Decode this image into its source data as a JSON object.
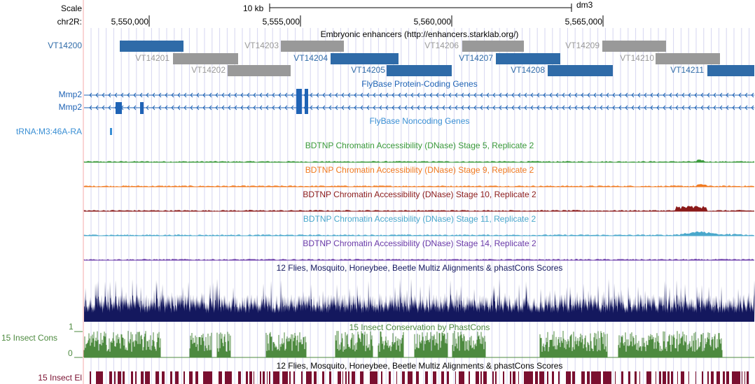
{
  "ruler": {
    "scale_label": "Scale",
    "scale_value": "10 kb",
    "assembly": "dm3",
    "chrom_label": "chr2R:",
    "positions": [
      "5,550,000",
      "5,555,000",
      "5,560,000",
      "5,565,000"
    ]
  },
  "enhancers": {
    "title": "Embryonic enhancers (http://enhancers.starklab.org/)",
    "items": [
      {
        "name": "VT14200",
        "color": "#2f6ba8"
      },
      {
        "name": "VT14201",
        "color": "#999999"
      },
      {
        "name": "VT14202",
        "color": "#999999"
      },
      {
        "name": "VT14203",
        "color": "#999999"
      },
      {
        "name": "VT14204",
        "color": "#2f6ba8"
      },
      {
        "name": "VT14205",
        "color": "#2f6ba8"
      },
      {
        "name": "VT14206",
        "color": "#999999"
      },
      {
        "name": "VT14207",
        "color": "#2f6ba8"
      },
      {
        "name": "VT14208",
        "color": "#2f6ba8"
      },
      {
        "name": "VT14209",
        "color": "#999999"
      },
      {
        "name": "VT14210",
        "color": "#999999"
      },
      {
        "name": "VT14211",
        "color": "#2f6ba8"
      }
    ]
  },
  "coding_genes": {
    "title": "FlyBase Protein-Coding Genes",
    "genes": [
      "Mmp2",
      "Mmp2"
    ],
    "color": "#1f63b5"
  },
  "noncoding_genes": {
    "title": "FlyBase Noncoding Genes",
    "genes": [
      "tRNA:M3:46A-RA"
    ],
    "color": "#3a8fd4"
  },
  "dnase_tracks": [
    {
      "title": "BDTNP Chromatin Accessibility (DNase) Stage 5, Replicate 2",
      "color": "#3a9a3a"
    },
    {
      "title": "BDTNP Chromatin Accessibility (DNase) Stage 9, Replicate 2",
      "color": "#f07a20"
    },
    {
      "title": "BDTNP Chromatin Accessibility (DNase) Stage 10, Replicate 2",
      "color": "#8b1a1a"
    },
    {
      "title": "BDTNP Chromatin Accessibility (DNase) Stage 11, Replicate 2",
      "color": "#4aa8cc"
    },
    {
      "title": "BDTNP Chromatin Accessibility (DNase) Stage 14, Replicate 2",
      "color": "#6a3aa8"
    }
  ],
  "multiz": {
    "title": "12 Flies, Mosquito, Honeybee, Beetle Multiz Alignments & phastCons Scores",
    "color": "#14185e"
  },
  "insect_cons": {
    "label": "15 Insect Cons",
    "title": "15 Insect Conservation by PhastCons",
    "ymax": "1",
    "ymin": "0",
    "color": "#4d8a3f"
  },
  "insect_el": {
    "label": "15 Insect El",
    "title": "12 Flies, Mosquito, Honeybee, Beetle Multiz Alignments & phastCons Scores",
    "color": "#7a1030"
  },
  "colors": {
    "guide_line": "#d6d6f0",
    "left_border": "#f4a8a8",
    "ruler": "#000000"
  }
}
